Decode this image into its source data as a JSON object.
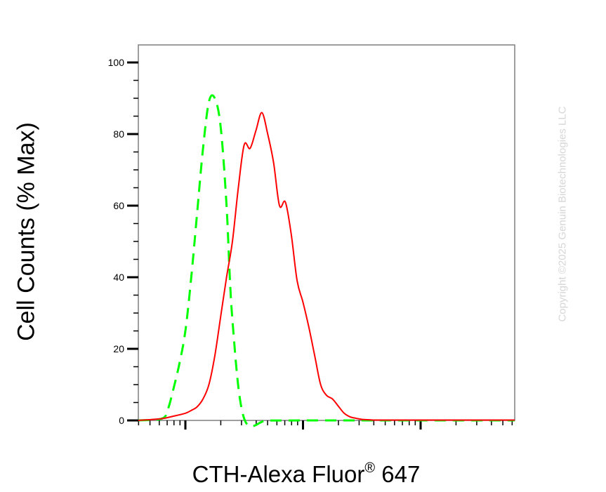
{
  "chart_data": {
    "type": "line",
    "xlabel_main": "CTH-Alexa Fluor",
    "xlabel_sup": "®",
    "xlabel_tail": " 647",
    "ylabel": "Cell Counts (% Max)",
    "ylim": [
      0,
      105
    ],
    "yticks": [
      "0",
      "20",
      "40",
      "60",
      "80",
      "100"
    ],
    "x_scale": "log",
    "xlim": [
      0.6,
      3.8
    ],
    "x_tick_labels": [],
    "grid": false,
    "watermark": "Copyright ©2025 Genuin Biotechnologies LLC",
    "series": [
      {
        "color": "#ff0000",
        "line_style": "solid",
        "x": [
          0.6,
          0.8,
          0.9,
          1.0,
          1.05,
          1.1,
          1.15,
          1.2,
          1.25,
          1.3,
          1.35,
          1.4,
          1.45,
          1.5,
          1.55,
          1.6,
          1.65,
          1.7,
          1.75,
          1.8,
          1.85,
          1.9,
          1.95,
          2.0,
          2.05,
          2.1,
          2.15,
          2.2,
          2.25,
          2.3,
          2.35,
          2.4,
          2.45,
          2.5,
          2.55,
          2.6,
          2.7,
          3.0,
          3.8
        ],
        "values": [
          0,
          0.5,
          1.2,
          2,
          2.8,
          3.8,
          6,
          10,
          18,
          29,
          40,
          50,
          65,
          77,
          76,
          81,
          86,
          80,
          72,
          60,
          61,
          52,
          39,
          33,
          26,
          18,
          10,
          7,
          6,
          4,
          2,
          1,
          0.6,
          0.3,
          0.2,
          0.1,
          0.1,
          0.1,
          0.1
        ]
      },
      {
        "color": "#00ff00",
        "line_style": "dashed",
        "x": [
          0.6,
          0.8,
          0.85,
          0.9,
          0.95,
          1.0,
          1.05,
          1.1,
          1.15,
          1.2,
          1.25,
          1.3,
          1.35,
          1.4,
          1.5,
          1.7,
          2.0,
          2.5,
          3.0,
          3.8
        ],
        "values": [
          0,
          0.5,
          3,
          9,
          16,
          25,
          40,
          58,
          76,
          89,
          90,
          82,
          60,
          28,
          0.5,
          0,
          0,
          0,
          0,
          0
        ]
      }
    ]
  }
}
